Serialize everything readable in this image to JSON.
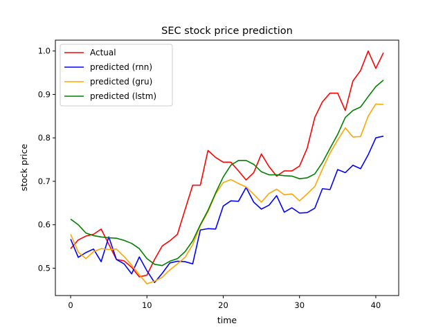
{
  "chart_data": {
    "type": "line",
    "title": "SEC stock price prediction",
    "xlabel": "time",
    "ylabel": "stock price",
    "xlim": [
      -2,
      43
    ],
    "ylim": [
      0.437,
      1.025
    ],
    "xticks": [
      0,
      10,
      20,
      30,
      40
    ],
    "yticks": [
      0.5,
      0.6,
      0.7,
      0.8,
      0.9,
      1.0
    ],
    "xtick_labels": [
      "0",
      "10",
      "20",
      "30",
      "40"
    ],
    "ytick_labels": [
      "0.5",
      "0.6",
      "0.7",
      "0.8",
      "0.9",
      "1.0"
    ],
    "grid": false,
    "legend_position": "top-left",
    "x": [
      0,
      1,
      2,
      3,
      4,
      5,
      6,
      7,
      8,
      9,
      10,
      11,
      12,
      13,
      14,
      15,
      16,
      17,
      18,
      19,
      20,
      21,
      22,
      23,
      24,
      25,
      26,
      27,
      28,
      29,
      30,
      31,
      32,
      33,
      34,
      35,
      36,
      37,
      38,
      39,
      40,
      41
    ],
    "series": [
      {
        "name": "Actual",
        "color": "#ff0000",
        "values": [
          0.545,
          0.565,
          0.574,
          0.578,
          0.59,
          0.555,
          0.52,
          0.517,
          0.502,
          0.48,
          0.484,
          0.52,
          0.551,
          0.563,
          0.578,
          0.635,
          0.691,
          0.691,
          0.771,
          0.755,
          0.744,
          0.744,
          0.724,
          0.703,
          0.72,
          0.763,
          0.734,
          0.712,
          0.724,
          0.724,
          0.735,
          0.776,
          0.847,
          0.883,
          0.903,
          0.903,
          0.863,
          0.931,
          0.955,
          1.0,
          0.96,
          0.996
        ]
      },
      {
        "name": "predicted (rnn)",
        "color": "#0000ff",
        "values": [
          0.567,
          0.525,
          0.536,
          0.544,
          0.515,
          0.572,
          0.52,
          0.51,
          0.487,
          0.526,
          0.494,
          0.467,
          0.488,
          0.512,
          0.516,
          0.515,
          0.51,
          0.588,
          0.591,
          0.59,
          0.643,
          0.655,
          0.654,
          0.686,
          0.652,
          0.636,
          0.645,
          0.667,
          0.629,
          0.639,
          0.627,
          0.628,
          0.638,
          0.683,
          0.681,
          0.727,
          0.72,
          0.737,
          0.729,
          0.761,
          0.8,
          0.804
        ]
      },
      {
        "name": "predicted (gru)",
        "color": "#ffa500",
        "values": [
          0.578,
          0.537,
          0.522,
          0.538,
          0.545,
          0.543,
          0.544,
          0.527,
          0.507,
          0.485,
          0.464,
          0.47,
          0.479,
          0.496,
          0.51,
          0.525,
          0.554,
          0.598,
          0.63,
          0.671,
          0.697,
          0.704,
          0.695,
          0.687,
          0.67,
          0.652,
          0.672,
          0.682,
          0.669,
          0.671,
          0.655,
          0.671,
          0.688,
          0.728,
          0.765,
          0.795,
          0.823,
          0.802,
          0.803,
          0.85,
          0.878,
          0.877
        ]
      },
      {
        "name": "predicted (lstm)",
        "color": "#008000",
        "values": [
          0.613,
          0.6,
          0.581,
          0.575,
          0.572,
          0.57,
          0.569,
          0.564,
          0.557,
          0.545,
          0.522,
          0.509,
          0.506,
          0.516,
          0.522,
          0.538,
          0.563,
          0.6,
          0.633,
          0.673,
          0.71,
          0.737,
          0.748,
          0.748,
          0.739,
          0.722,
          0.715,
          0.715,
          0.713,
          0.712,
          0.706,
          0.708,
          0.717,
          0.743,
          0.776,
          0.808,
          0.847,
          0.863,
          0.871,
          0.895,
          0.918,
          0.933
        ]
      }
    ]
  }
}
